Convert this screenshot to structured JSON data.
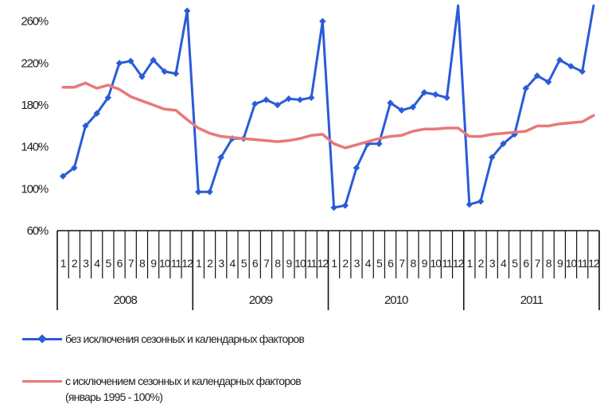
{
  "chart_data": {
    "type": "line",
    "title": "",
    "xlabel": "",
    "ylabel": "",
    "y_unit": "%",
    "ylim": [
      60,
      275
    ],
    "yticks": [
      "60%",
      "100%",
      "140%",
      "180%",
      "220%",
      "260%"
    ],
    "ytick_values": [
      60,
      100,
      140,
      180,
      220,
      260
    ],
    "grid": false,
    "legend_position": "bottom",
    "years": [
      "2008",
      "2009",
      "2010",
      "2011"
    ],
    "months": [
      "1",
      "2",
      "3",
      "4",
      "5",
      "6",
      "7",
      "8",
      "9",
      "10",
      "11",
      "12"
    ],
    "series": [
      {
        "name": "без исключения сезонных и календарных факторов",
        "color": "#2a5bd7",
        "marker": "diamond",
        "values": [
          112,
          120,
          160,
          172,
          187,
          220,
          222,
          207,
          223,
          212,
          210,
          270,
          97,
          97,
          130,
          148,
          148,
          181,
          185,
          180,
          186,
          185,
          187,
          260,
          82,
          84,
          120,
          143,
          143,
          182,
          175,
          178,
          192,
          190,
          187,
          282,
          85,
          88,
          130,
          143,
          152,
          196,
          208,
          202,
          223,
          217,
          212,
          282
        ]
      },
      {
        "name": "с исключением сезонных и календарных факторов (январь 1995 - 100%)",
        "color": "#e8787a",
        "marker": "none",
        "values": [
          197,
          197,
          201,
          196,
          199,
          195,
          188,
          184,
          180,
          176,
          175,
          166,
          158,
          153,
          150,
          149,
          148,
          147,
          146,
          145,
          146,
          148,
          151,
          152,
          143,
          139,
          142,
          145,
          148,
          150,
          151,
          155,
          157,
          157,
          158,
          158,
          150,
          150,
          152,
          153,
          154,
          155,
          160,
          160,
          162,
          163,
          164,
          170
        ]
      }
    ]
  },
  "legend": {
    "series1_label": "без исключения сезонных и календарных факторов",
    "series2_label_line1": "с исключением сезонных и календарных факторов",
    "series2_label_line2": "(январь 1995 - 100%)"
  }
}
